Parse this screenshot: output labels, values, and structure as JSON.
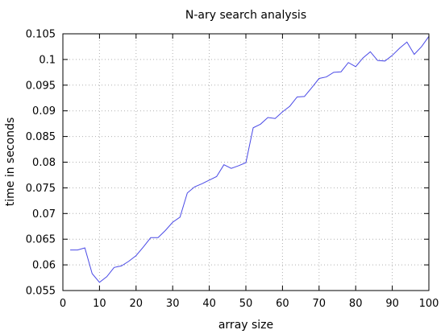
{
  "chart_data": {
    "type": "line",
    "title": "N-ary search analysis",
    "xlabel": "array size",
    "ylabel": "time in seconds",
    "xlim": [
      0,
      100
    ],
    "ylim": [
      0.055,
      0.105
    ],
    "grid": true,
    "xticks": [
      0,
      10,
      20,
      30,
      40,
      50,
      60,
      70,
      80,
      90,
      100
    ],
    "xtick_labels": [
      "0",
      "10",
      "20",
      "30",
      "40",
      "50",
      "60",
      "70",
      "80",
      "90",
      "100"
    ],
    "yticks": [
      0.055,
      0.06,
      0.065,
      0.07,
      0.075,
      0.08,
      0.085,
      0.09,
      0.095,
      0.1,
      0.105
    ],
    "ytick_labels": [
      "0.055",
      "0.06",
      "0.065",
      "0.07",
      "0.075",
      "0.08",
      "0.085",
      "0.09",
      "0.095",
      "0.1",
      "0.105"
    ],
    "series": [
      {
        "color": "#4a4ae6",
        "x": [
          2,
          4,
          6,
          8,
          10,
          12,
          14,
          16,
          18,
          20,
          22,
          24,
          26,
          28,
          30,
          32,
          34,
          36,
          38,
          40,
          42,
          44,
          46,
          48,
          50,
          52,
          54,
          56,
          58,
          60,
          62,
          64,
          66,
          68,
          70,
          72,
          74,
          76,
          78,
          80,
          82,
          84,
          86,
          88,
          90,
          92,
          94,
          96,
          98,
          100
        ],
        "y": [
          0.0629,
          0.0629,
          0.0633,
          0.0583,
          0.0566,
          0.0577,
          0.0595,
          0.0598,
          0.0607,
          0.0618,
          0.0635,
          0.0653,
          0.0653,
          0.0667,
          0.0683,
          0.0693,
          0.074,
          0.0752,
          0.0758,
          0.0765,
          0.0772,
          0.0795,
          0.0788,
          0.0793,
          0.0799,
          0.0867,
          0.0874,
          0.0887,
          0.0885,
          0.0898,
          0.0909,
          0.0927,
          0.0928,
          0.0945,
          0.0963,
          0.0966,
          0.0975,
          0.0976,
          0.0994,
          0.0986,
          0.1003,
          0.1015,
          0.0998,
          0.0997,
          0.1008,
          0.1022,
          0.1034,
          0.101,
          0.1025,
          0.1045
        ]
      }
    ]
  }
}
